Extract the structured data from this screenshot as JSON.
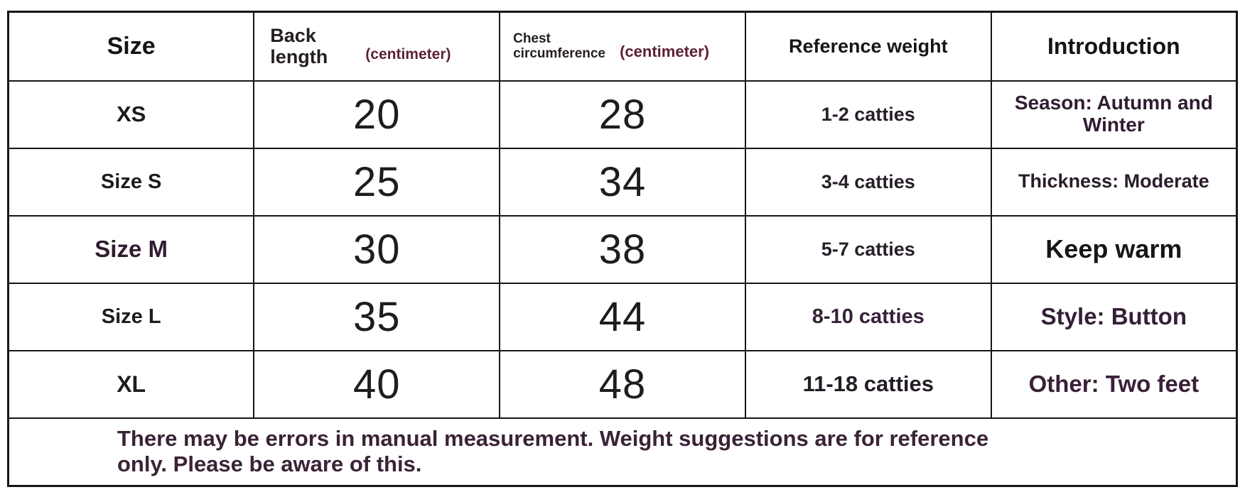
{
  "size_chart": {
    "header": {
      "size_label": "Size",
      "back_length_label": "Back length",
      "back_length_unit": "(centimeter)",
      "chest_label": "Chest circumference",
      "chest_unit": "(centimeter)",
      "weight_label": "Reference weight",
      "introduction_label": "Introduction"
    },
    "rows": [
      {
        "size": "XS",
        "back_length_cm": "20",
        "chest_cm": "28",
        "reference_weight": "1-2 catties",
        "introduction": "Season: Autumn and Winter"
      },
      {
        "size": "Size S",
        "back_length_cm": "25",
        "chest_cm": "34",
        "reference_weight": "3-4 catties",
        "introduction": "Thickness: Moderate"
      },
      {
        "size": "Size M",
        "back_length_cm": "30",
        "chest_cm": "38",
        "reference_weight": "5-7 catties",
        "introduction": "Keep warm"
      },
      {
        "size": "Size L",
        "back_length_cm": "35",
        "chest_cm": "44",
        "reference_weight": "8-10 catties",
        "introduction": "Style: Button"
      },
      {
        "size": "XL",
        "back_length_cm": "40",
        "chest_cm": "48",
        "reference_weight": "11-18 catties",
        "introduction": "Other: Two feet"
      }
    ],
    "note": {
      "line1": "There may be errors in manual measurement. Weight suggestions are for reference",
      "line2": "only. Please be aware of this."
    },
    "colors": {
      "border": "#161616",
      "text_black": "#1a1a1a",
      "text_plum": "#35203a",
      "text_maroon": "#5b2138",
      "background": "#ffffff"
    }
  }
}
